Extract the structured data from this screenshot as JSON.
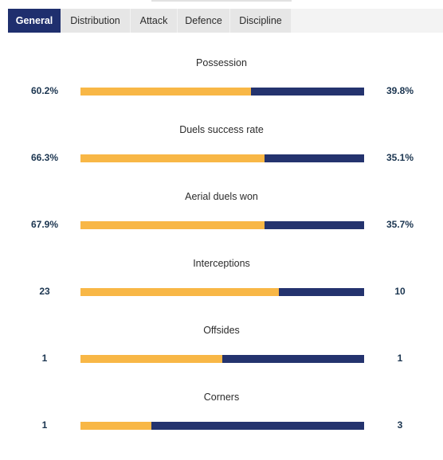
{
  "tabs": [
    {
      "label": "General",
      "active": true
    },
    {
      "label": "Distribution",
      "active": false
    },
    {
      "label": "Attack",
      "active": false
    },
    {
      "label": "Defence",
      "active": false
    },
    {
      "label": "Discipline",
      "active": false
    }
  ],
  "colors": {
    "home": "#f8b746",
    "away": "#24336e",
    "tab_active_bg": "#1f2f6e",
    "value_text": "#1b3550"
  },
  "stats": [
    {
      "title": "Possession",
      "home": "60.2%",
      "away": "39.8%",
      "home_share": 0.6
    },
    {
      "title": "Duels success rate",
      "home": "66.3%",
      "away": "35.1%",
      "home_share": 0.65
    },
    {
      "title": "Aerial duels won",
      "home": "67.9%",
      "away": "35.7%",
      "home_share": 0.65
    },
    {
      "title": "Interceptions",
      "home": "23",
      "away": "10",
      "home_share": 0.7
    },
    {
      "title": "Offsides",
      "home": "1",
      "away": "1",
      "home_share": 0.5
    },
    {
      "title": "Corners",
      "home": "1",
      "away": "3",
      "home_share": 0.25
    }
  ]
}
